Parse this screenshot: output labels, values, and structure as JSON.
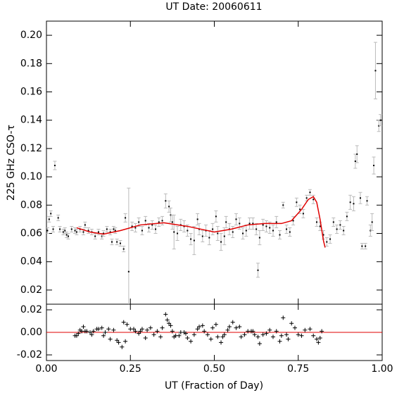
{
  "chart_data": [
    {
      "type": "scatter",
      "title": "UT Date: 20060611",
      "y_label": "225 GHz CSO-τ",
      "xlim": [
        0,
        1
      ],
      "ylim": [
        0.01,
        0.21
      ],
      "yticks": [
        {
          "value": 0.02,
          "label": "0.02"
        },
        {
          "value": 0.04,
          "label": "0.04"
        },
        {
          "value": 0.06,
          "label": "0.06"
        },
        {
          "value": 0.08,
          "label": "0.08"
        },
        {
          "value": 0.1,
          "label": "0.10"
        },
        {
          "value": 0.12,
          "label": "0.12"
        },
        {
          "value": 0.14,
          "label": "0.14"
        },
        {
          "value": 0.16,
          "label": "0.16"
        },
        {
          "value": 0.18,
          "label": "0.18"
        },
        {
          "value": 0.2,
          "label": "0.20"
        }
      ],
      "series": [
        {
          "mode": "markers",
          "color": "#000000",
          "error_color": "#bbbbbb",
          "x": [
            0.003,
            0.008,
            0.013,
            0.02,
            0.025,
            0.035,
            0.04,
            0.05,
            0.055,
            0.06,
            0.065,
            0.075,
            0.085,
            0.09,
            0.1,
            0.11,
            0.115,
            0.125,
            0.135,
            0.145,
            0.155,
            0.165,
            0.17,
            0.18,
            0.19,
            0.195,
            0.2,
            0.205,
            0.21,
            0.22,
            0.23,
            0.235,
            0.245,
            0.255,
            0.265,
            0.275,
            0.285,
            0.295,
            0.305,
            0.315,
            0.325,
            0.335,
            0.345,
            0.355,
            0.365,
            0.37,
            0.375,
            0.38,
            0.39,
            0.4,
            0.41,
            0.42,
            0.43,
            0.44,
            0.45,
            0.455,
            0.465,
            0.475,
            0.485,
            0.495,
            0.505,
            0.51,
            0.52,
            0.53,
            0.535,
            0.545,
            0.555,
            0.565,
            0.575,
            0.585,
            0.595,
            0.605,
            0.615,
            0.625,
            0.63,
            0.635,
            0.645,
            0.655,
            0.665,
            0.675,
            0.685,
            0.695,
            0.705,
            0.715,
            0.725,
            0.735,
            0.745,
            0.755,
            0.765,
            0.775,
            0.785,
            0.795,
            0.805,
            0.815,
            0.825,
            0.835,
            0.845,
            0.855,
            0.865,
            0.875,
            0.885,
            0.895,
            0.905,
            0.915,
            0.92,
            0.925,
            0.935,
            0.94,
            0.95,
            0.955,
            0.965,
            0.97,
            0.975,
            0.98,
            0.99,
            0.995
          ],
          "values": [
            0.062,
            0.07,
            0.074,
            0.063,
            0.108,
            0.071,
            0.063,
            0.061,
            0.062,
            0.059,
            0.058,
            0.063,
            0.062,
            0.061,
            0.063,
            0.061,
            0.066,
            0.062,
            0.061,
            0.058,
            0.061,
            0.058,
            0.06,
            0.063,
            0.061,
            0.054,
            0.063,
            0.062,
            0.054,
            0.053,
            0.049,
            0.071,
            0.033,
            0.065,
            0.064,
            0.068,
            0.062,
            0.069,
            0.064,
            0.066,
            0.063,
            0.068,
            0.069,
            0.083,
            0.079,
            0.073,
            0.068,
            0.061,
            0.06,
            0.066,
            0.065,
            0.062,
            0.056,
            0.055,
            0.07,
            0.063,
            0.058,
            0.062,
            0.057,
            0.063,
            0.072,
            0.06,
            0.054,
            0.058,
            0.068,
            0.063,
            0.061,
            0.07,
            0.067,
            0.06,
            0.062,
            0.067,
            0.067,
            0.063,
            0.034,
            0.057,
            0.066,
            0.065,
            0.064,
            0.062,
            0.068,
            0.059,
            0.08,
            0.063,
            0.061,
            0.069,
            0.082,
            0.077,
            0.074,
            0.085,
            0.089,
            0.084,
            0.068,
            0.065,
            0.059,
            0.054,
            0.056,
            0.068,
            0.063,
            0.066,
            0.062,
            0.072,
            0.082,
            0.081,
            0.111,
            0.116,
            0.085,
            0.051,
            0.051,
            0.083,
            0.062,
            0.068,
            0.108,
            0.175,
            0.136,
            0.14
          ],
          "errors": [
            0.002,
            0.002,
            0.002,
            0.002,
            0.003,
            0.002,
            0.002,
            0.002,
            0.002,
            0.002,
            0.002,
            0.002,
            0.002,
            0.002,
            0.002,
            0.002,
            0.002,
            0.002,
            0.002,
            0.002,
            0.002,
            0.002,
            0.002,
            0.002,
            0.002,
            0.002,
            0.002,
            0.002,
            0.002,
            0.002,
            0.002,
            0.003,
            0.059,
            0.003,
            0.003,
            0.003,
            0.003,
            0.003,
            0.003,
            0.003,
            0.003,
            0.003,
            0.003,
            0.005,
            0.004,
            0.005,
            0.005,
            0.012,
            0.005,
            0.004,
            0.004,
            0.004,
            0.004,
            0.01,
            0.004,
            0.004,
            0.004,
            0.004,
            0.005,
            0.004,
            0.004,
            0.005,
            0.006,
            0.006,
            0.004,
            0.004,
            0.004,
            0.004,
            0.004,
            0.004,
            0.004,
            0.004,
            0.004,
            0.004,
            0.005,
            0.005,
            0.004,
            0.004,
            0.004,
            0.004,
            0.004,
            0.003,
            0.002,
            0.003,
            0.003,
            0.003,
            0.003,
            0.003,
            0.003,
            0.002,
            0.002,
            0.003,
            0.003,
            0.003,
            0.003,
            0.003,
            0.003,
            0.003,
            0.003,
            0.003,
            0.003,
            0.003,
            0.005,
            0.005,
            0.005,
            0.006,
            0.004,
            0.002,
            0.002,
            0.003,
            0.004,
            0.006,
            0.006,
            0.02,
            0.004,
            0.004
          ]
        },
        {
          "mode": "line",
          "color": "#e00000",
          "x": [
            0.09,
            0.13,
            0.17,
            0.22,
            0.28,
            0.35,
            0.42,
            0.5,
            0.55,
            0.6,
            0.65,
            0.7,
            0.73,
            0.76,
            0.78,
            0.795,
            0.805,
            0.815,
            0.825,
            0.83
          ],
          "values": [
            0.064,
            0.061,
            0.0595,
            0.062,
            0.066,
            0.0675,
            0.065,
            0.061,
            0.063,
            0.066,
            0.067,
            0.067,
            0.069,
            0.077,
            0.084,
            0.086,
            0.082,
            0.07,
            0.055,
            0.05
          ]
        }
      ]
    },
    {
      "type": "scatter",
      "x_label": "UT (Fraction of Day)",
      "xlim": [
        0,
        1
      ],
      "ylim": [
        -0.025,
        0.025
      ],
      "xticks": [
        {
          "value": 0,
          "label": "0.00"
        },
        {
          "value": 0.25,
          "label": "0.25"
        },
        {
          "value": 0.5,
          "label": "0.50"
        },
        {
          "value": 0.75,
          "label": "0.75"
        },
        {
          "value": 1,
          "label": "1.00"
        }
      ],
      "yticks": [
        {
          "value": -0.02,
          "label": "-0.02"
        },
        {
          "value": 0,
          "label": "0.00"
        },
        {
          "value": 0.02,
          "label": "0.02"
        }
      ],
      "zero_line_color": "#e00000",
      "series": [
        {
          "mode": "plus",
          "color": "#000000",
          "x": [
            0.085,
            0.09,
            0.095,
            0.1,
            0.105,
            0.11,
            0.115,
            0.12,
            0.13,
            0.135,
            0.14,
            0.15,
            0.155,
            0.165,
            0.17,
            0.175,
            0.185,
            0.19,
            0.2,
            0.21,
            0.215,
            0.225,
            0.23,
            0.235,
            0.24,
            0.25,
            0.26,
            0.265,
            0.275,
            0.28,
            0.285,
            0.295,
            0.3,
            0.31,
            0.32,
            0.33,
            0.34,
            0.345,
            0.355,
            0.36,
            0.365,
            0.37,
            0.375,
            0.38,
            0.385,
            0.395,
            0.4,
            0.41,
            0.415,
            0.42,
            0.43,
            0.44,
            0.45,
            0.455,
            0.465,
            0.47,
            0.48,
            0.49,
            0.495,
            0.505,
            0.51,
            0.52,
            0.525,
            0.53,
            0.54,
            0.545,
            0.555,
            0.565,
            0.575,
            0.58,
            0.59,
            0.6,
            0.61,
            0.615,
            0.62,
            0.63,
            0.635,
            0.645,
            0.655,
            0.665,
            0.675,
            0.685,
            0.695,
            0.7,
            0.705,
            0.715,
            0.72,
            0.73,
            0.74,
            0.75,
            0.76,
            0.77,
            0.785,
            0.795,
            0.805,
            0.81,
            0.815,
            0.82
          ],
          "values": [
            -0.003,
            -0.003,
            -0.001,
            0.002,
            0.001,
            0.005,
            0.001,
            0.001,
            0,
            -0.002,
            0.001,
            0.003,
            0.003,
            0.004,
            -0.003,
            0,
            0.003,
            -0.006,
            0.002,
            -0.007,
            -0.009,
            -0.013,
            0.009,
            -0.008,
            0.007,
            0.003,
            0.003,
            0.001,
            -0.001,
            0.001,
            0.003,
            -0.005,
            0.002,
            0.004,
            -0.002,
            0.001,
            -0.004,
            0.004,
            0.016,
            0.011,
            0.008,
            0.006,
            0.001,
            -0.004,
            -0.003,
            -0.003,
            0,
            0,
            -0.001,
            -0.005,
            -0.008,
            -0.002,
            0.003,
            0.005,
            0.006,
            0.001,
            -0.002,
            -0.006,
            0.004,
            0.007,
            -0.004,
            -0.009,
            -0.004,
            -0.002,
            0.002,
            0.005,
            0.009,
            0.004,
            0.005,
            -0.004,
            -0.002,
            0.001,
            0.001,
            0.001,
            -0.002,
            -0.004,
            -0.01,
            -0.002,
            -0.001,
            0.002,
            -0.004,
            0.001,
            -0.008,
            -0.003,
            0.013,
            -0.002,
            -0.006,
            0.008,
            0.004,
            -0.002,
            -0.003,
            0.002,
            0.003,
            -0.003,
            -0.006,
            -0.009,
            -0.005,
            0.001
          ]
        }
      ]
    }
  ]
}
